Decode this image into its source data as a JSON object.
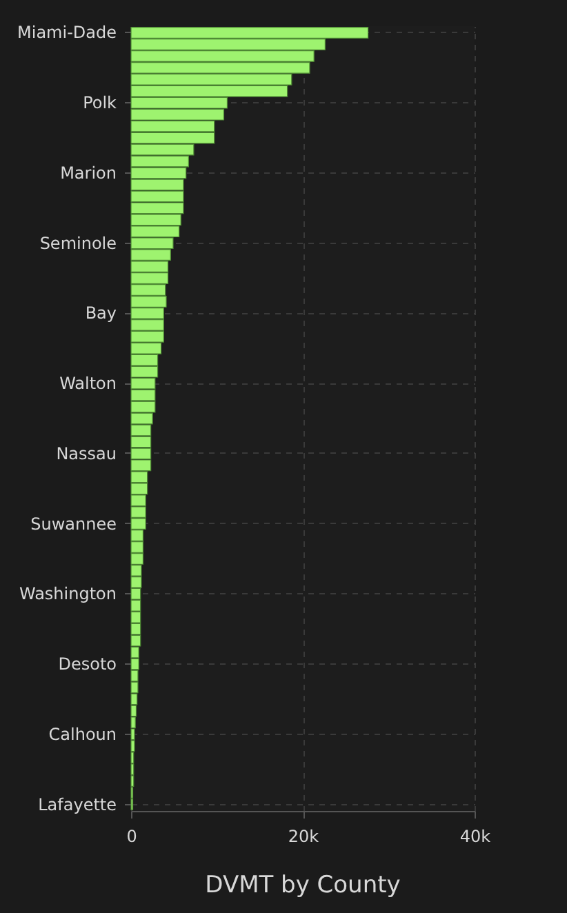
{
  "chart_data": {
    "type": "bar",
    "orientation": "horizontal",
    "title": "DVMT by County",
    "categories": [
      "Miami-Dade",
      null,
      null,
      null,
      null,
      null,
      "Polk",
      null,
      null,
      null,
      null,
      null,
      "Marion",
      null,
      null,
      null,
      null,
      null,
      "Seminole",
      null,
      null,
      null,
      null,
      null,
      "Bay",
      null,
      null,
      null,
      null,
      null,
      "Walton",
      null,
      null,
      null,
      null,
      null,
      "Nassau",
      null,
      null,
      null,
      null,
      null,
      "Suwannee",
      null,
      null,
      null,
      null,
      null,
      "Washington",
      null,
      null,
      null,
      null,
      null,
      "Desoto",
      null,
      null,
      null,
      null,
      null,
      "Calhoun",
      null,
      null,
      null,
      null,
      null,
      "Lafayette"
    ],
    "values": [
      27600,
      22600,
      21300,
      20800,
      18700,
      18200,
      11200,
      10800,
      9700,
      9700,
      7300,
      6700,
      6400,
      6100,
      6100,
      6100,
      5800,
      5600,
      4900,
      4600,
      4300,
      4300,
      4000,
      4100,
      3800,
      3800,
      3800,
      3500,
      3100,
      3100,
      2800,
      2800,
      2800,
      2500,
      2300,
      2300,
      2300,
      2300,
      1900,
      1900,
      1700,
      1700,
      1700,
      1400,
      1400,
      1400,
      1200,
      1200,
      1100,
      1100,
      1100,
      1100,
      1100,
      900,
      900,
      800,
      800,
      700,
      600,
      500,
      400,
      400,
      300,
      300,
      300,
      200,
      200
    ],
    "color": "#9ef36f",
    "xlim": [
      0,
      40000
    ],
    "xticks": [
      0,
      {
        "value": 20000,
        "label": "20k"
      },
      {
        "value": 40000,
        "label": "40k"
      }
    ],
    "grid": true
  }
}
